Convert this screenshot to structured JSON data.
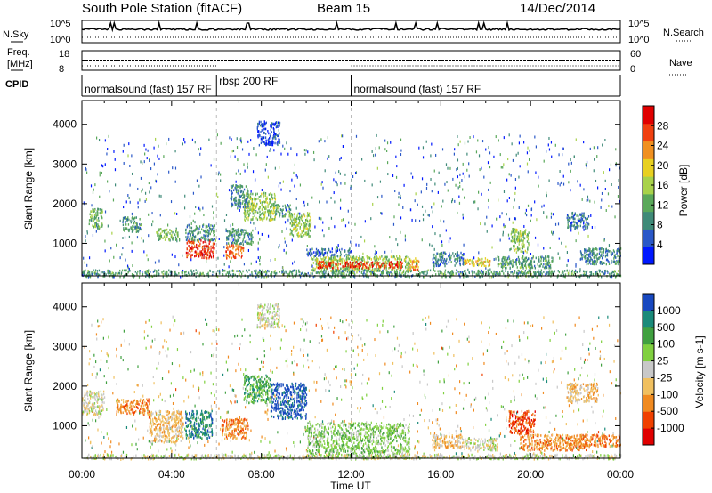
{
  "header": {
    "title": "South Pole Station (fitACF)",
    "beam": "Beam 15",
    "date": "14/Dec/2014"
  },
  "summary_panels": {
    "left_labels": [
      "N.Sky",
      "Freq.",
      "[MHz]",
      "CPID"
    ],
    "right_labels": [
      "N.Search",
      "Nave"
    ],
    "noise_ticks": [
      "10^5",
      "10^0"
    ],
    "freq_ticks": [
      "18",
      "8"
    ],
    "nave_ticks": [
      "60",
      "0"
    ],
    "cpid_segments": [
      {
        "label": "normalsound (fast) 157 RF",
        "start_hour": 0,
        "end_hour": 6.0
      },
      {
        "label": "rbsp 200 RF",
        "start_hour": 6.0,
        "end_hour": 12.0
      },
      {
        "label": "normalsound (fast) 157 RF",
        "start_hour": 12.0,
        "end_hour": 24.0
      }
    ]
  },
  "chart_data": [
    {
      "type": "heatmap",
      "ylabel": "Slant Range [km]",
      "ylim": [
        180,
        4600
      ],
      "yticks": [
        1000,
        2000,
        3000,
        4000
      ],
      "xlim": [
        0,
        24
      ],
      "colorbar": {
        "label": "Power [dB]",
        "ticks": [
          "28",
          "24",
          "20",
          "16",
          "12",
          "8",
          "4"
        ],
        "range": [
          0,
          30
        ],
        "colors": [
          "#0018ff",
          "#2a58c8",
          "#3f8a78",
          "#5aa85a",
          "#a8d24a",
          "#e8d020",
          "#f09020",
          "#f04010",
          "#e00000"
        ]
      },
      "regions": [
        {
          "t0": 0.3,
          "t1": 0.9,
          "r0": 1400,
          "r1": 1900,
          "v": 12
        },
        {
          "t0": 1.8,
          "t1": 2.6,
          "r0": 1300,
          "r1": 1700,
          "v": 10
        },
        {
          "t0": 3.3,
          "t1": 4.3,
          "r0": 1100,
          "r1": 1400,
          "v": 12
        },
        {
          "t0": 4.6,
          "t1": 5.9,
          "r0": 650,
          "r1": 1100,
          "v": 26
        },
        {
          "t0": 4.6,
          "t1": 5.9,
          "r0": 1100,
          "r1": 1500,
          "v": 9
        },
        {
          "t0": 6.4,
          "t1": 7.2,
          "r0": 650,
          "r1": 1000,
          "v": 24
        },
        {
          "t0": 6.4,
          "t1": 7.6,
          "r0": 1000,
          "r1": 1400,
          "v": 9
        },
        {
          "t0": 7.2,
          "t1": 8.6,
          "r0": 1600,
          "r1": 2300,
          "v": 14
        },
        {
          "t0": 6.6,
          "t1": 7.4,
          "r0": 1900,
          "r1": 2500,
          "v": 8
        },
        {
          "t0": 8.6,
          "t1": 9.3,
          "r0": 1700,
          "r1": 2000,
          "v": 10
        },
        {
          "t0": 9.2,
          "t1": 10.2,
          "r0": 1200,
          "r1": 1800,
          "v": 14
        },
        {
          "t0": 10.0,
          "t1": 12.0,
          "r0": 700,
          "r1": 900,
          "v": 6
        },
        {
          "t0": 10.2,
          "t1": 14.6,
          "r0": 330,
          "r1": 700,
          "v": 14
        },
        {
          "t0": 10.5,
          "t1": 14.3,
          "r0": 400,
          "r1": 560,
          "v": 26
        },
        {
          "t0": 14.6,
          "t1": 15.0,
          "r0": 350,
          "r1": 650,
          "v": 22
        },
        {
          "t0": 15.6,
          "t1": 17.0,
          "r0": 450,
          "r1": 800,
          "v": 7
        },
        {
          "t0": 17.0,
          "t1": 18.2,
          "r0": 450,
          "r1": 650,
          "v": 18
        },
        {
          "t0": 18.5,
          "t1": 21.0,
          "r0": 400,
          "r1": 700,
          "v": 10
        },
        {
          "t0": 19.1,
          "t1": 19.9,
          "r0": 800,
          "r1": 1400,
          "v": 14
        },
        {
          "t0": 21.6,
          "t1": 22.6,
          "r0": 1400,
          "r1": 1800,
          "v": 7
        },
        {
          "t0": 22.2,
          "t1": 24.0,
          "r0": 500,
          "r1": 900,
          "v": 8
        },
        {
          "t0": 0.0,
          "t1": 24.0,
          "r0": 180,
          "r1": 350,
          "v": 10
        },
        {
          "t0": 7.8,
          "t1": 8.8,
          "r0": 3500,
          "r1": 4100,
          "v": 4
        }
      ]
    },
    {
      "type": "heatmap",
      "xlabel": "Time UT",
      "ylabel": "Slant Range [km]",
      "ylim": [
        180,
        4600
      ],
      "yticks": [
        1000,
        2000,
        3000,
        4000
      ],
      "xlim": [
        0,
        24
      ],
      "xticks": [
        "00:00",
        "04:00",
        "08:00",
        "12:00",
        "16:00",
        "20:00",
        "00:00"
      ],
      "colorbar": {
        "label": "Velocity [m s-1]",
        "ticks": [
          "1000",
          "500",
          "100",
          "25",
          "-25",
          "-100",
          "-500",
          "-1000"
        ],
        "range": [
          -1000,
          1000
        ],
        "colors": [
          "#e00000",
          "#f04000",
          "#f08a20",
          "#f0c060",
          "#c8c8c8",
          "#80d040",
          "#40a040",
          "#1a8a7a",
          "#1848c0"
        ]
      },
      "regions": [
        {
          "t0": 0.0,
          "t1": 1.0,
          "r0": 1300,
          "r1": 1900,
          "v": 4
        },
        {
          "t0": 1.5,
          "t1": 3.0,
          "r0": 1300,
          "r1": 1700,
          "v": 2
        },
        {
          "t0": 3.0,
          "t1": 4.5,
          "r0": 600,
          "r1": 1400,
          "v": 3
        },
        {
          "t0": 4.6,
          "t1": 5.8,
          "r0": 700,
          "r1": 1400,
          "v": 7
        },
        {
          "t0": 6.2,
          "t1": 7.4,
          "r0": 700,
          "r1": 1200,
          "v": 2
        },
        {
          "t0": 7.2,
          "t1": 8.4,
          "r0": 1600,
          "r1": 2300,
          "v": 6
        },
        {
          "t0": 8.4,
          "t1": 10.0,
          "r0": 1200,
          "r1": 2100,
          "v": 8
        },
        {
          "t0": 10.0,
          "t1": 14.6,
          "r0": 200,
          "r1": 1100,
          "v": 5
        },
        {
          "t0": 15.6,
          "t1": 17.0,
          "r0": 450,
          "r1": 800,
          "v": 3
        },
        {
          "t0": 17.0,
          "t1": 18.5,
          "r0": 400,
          "r1": 700,
          "v": 4
        },
        {
          "t0": 19.0,
          "t1": 20.2,
          "r0": 800,
          "r1": 1400,
          "v": 1
        },
        {
          "t0": 19.5,
          "t1": 22.5,
          "r0": 400,
          "r1": 800,
          "v": 2
        },
        {
          "t0": 22.0,
          "t1": 24.0,
          "r0": 500,
          "r1": 800,
          "v": 2
        },
        {
          "t0": 21.6,
          "t1": 23.0,
          "r0": 1600,
          "r1": 2100,
          "v": 3
        },
        {
          "t0": 0.0,
          "t1": 24.0,
          "r0": 180,
          "r1": 300,
          "v": 4
        },
        {
          "t0": 7.8,
          "t1": 8.8,
          "r0": 3500,
          "r1": 4100,
          "v": 4
        }
      ]
    }
  ]
}
